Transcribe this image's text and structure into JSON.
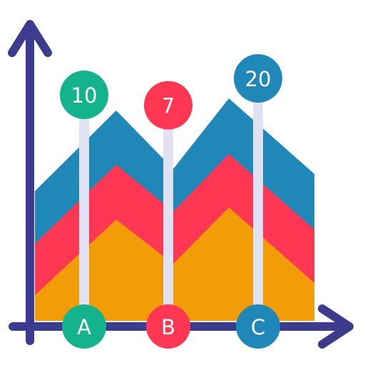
{
  "chart_data": {
    "type": "area",
    "categories": [
      "A",
      "B",
      "C"
    ],
    "values": [
      10,
      7,
      20
    ],
    "title": "",
    "xlabel": "",
    "ylabel": "",
    "grid": false,
    "legend": "none"
  },
  "colors": {
    "axis": "#3d3b8e",
    "area_top": "#1f88b8",
    "area_middle": "#ff3752",
    "area_bottom": "#f29c07",
    "pin": "#e0e1f2",
    "marker_a": "#13b48b",
    "marker_b": "#ff3752",
    "marker_c": "#1f88b8"
  }
}
